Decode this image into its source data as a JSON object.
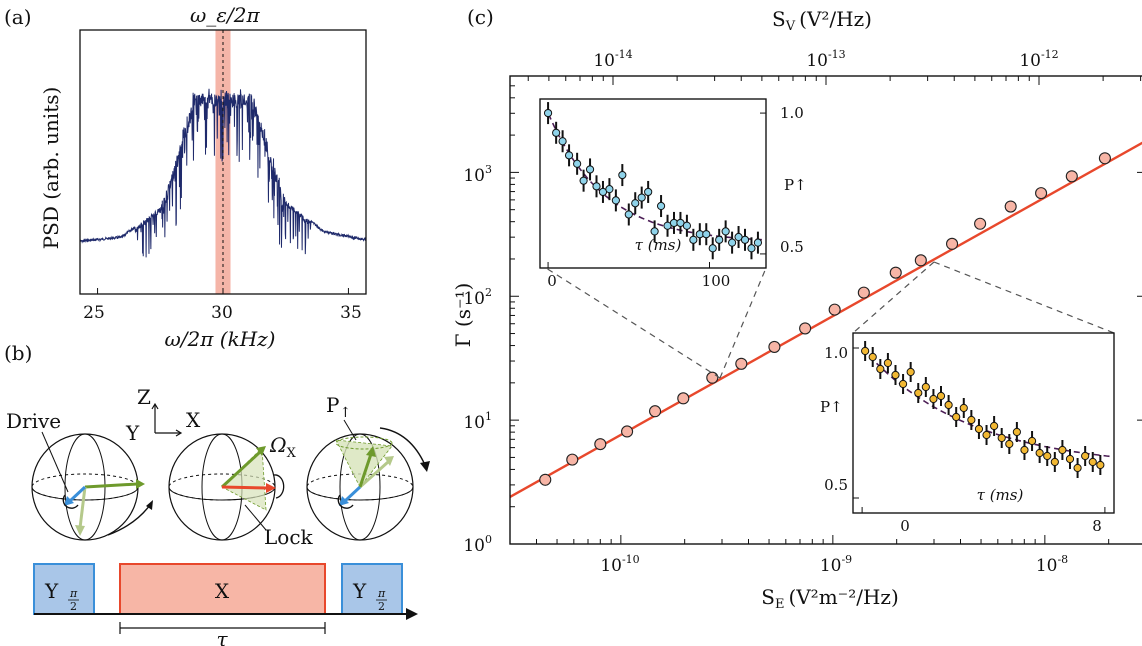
{
  "panel_a": {
    "label": "(a)",
    "top_label": "ω_ε/2π",
    "ylabel": "PSD (arb. units)",
    "xlabel": "ω/2π (kHz)",
    "xticks": [
      "25",
      "30",
      "35"
    ]
  },
  "panel_b": {
    "label": "(b)",
    "axis_z": "Z",
    "axis_y": "Y",
    "axis_x": "X",
    "drive_label": "Drive",
    "omega_label": "Ω",
    "omega_sub": "X",
    "lock_label": "Lock",
    "pup_label": "P",
    "pup_sub": "↑",
    "pulse_left": "Y",
    "pulse_mid": "X",
    "pulse_right": "Y",
    "pulse_sub_num": "π",
    "pulse_sub_den": "2",
    "tau": "τ",
    "colors": {
      "drive": "#3a8fd9",
      "green_dark": "#6e9a2c",
      "green_light": "#b5c98b",
      "red": "#e8482c",
      "pulse_blue": "#a9c6e8",
      "pulse_red": "#f7b6a6"
    }
  },
  "panel_c": {
    "label": "(c)",
    "top_axis_label": "S",
    "top_axis_sub": "V",
    "top_axis_unit": "(V²/Hz)",
    "top_ticks": [
      "10",
      "10",
      "10"
    ],
    "top_tick_exps": [
      "-14",
      "-13",
      "-12"
    ],
    "ylabel": "Γ (s⁻¹)",
    "yticks": [
      "10",
      "10",
      "10",
      "10"
    ],
    "ytick_exps": [
      "0",
      "1",
      "2",
      "3"
    ],
    "xlabel": "S",
    "xlabel_sub": "E",
    "xlabel_unit": "(V²m⁻²/Hz)",
    "xticks": [
      "10",
      "10",
      "10"
    ],
    "xtick_exps": [
      "-10",
      "-9",
      "-8"
    ]
  },
  "chart_data": [
    {
      "type": "scatter",
      "panel": "c",
      "xlabel": "S_E (V²m⁻²/Hz)",
      "ylabel": "Γ (s⁻¹)",
      "xscale": "log",
      "yscale": "log",
      "xlim": [
        3e-11,
        3e-08
      ],
      "ylim": [
        1,
        6000
      ],
      "top_axis": {
        "label": "S_V (V²/Hz)",
        "ticks": [
          1e-14,
          1e-13,
          1e-12
        ]
      },
      "series": [
        {
          "x": [
            4.4e-11,
            5.9e-11,
            8e-11,
            1.07e-10,
            1.45e-10,
            1.97e-10,
            2.7e-10,
            3.7e-10,
            5.3e-10,
            7.4e-10,
            1.02e-09,
            1.4e-09,
            1.98e-09,
            2.6e-09,
            3.65e-09,
            4.95e-09,
            6.9e-09,
            9.6e-09,
            1.34e-08,
            1.92e-08
          ],
          "y": [
            3.3,
            4.8,
            6.4,
            8.1,
            11.8,
            15.0,
            22.0,
            28.5,
            39.0,
            55.0,
            78.0,
            107.0,
            155.0,
            195.0,
            265.0,
            385.0,
            530.0,
            680.0,
            930.0,
            1300.0
          ]
        }
      ],
      "fit_line": {
        "x": [
          3e-11,
          3e-08
        ],
        "y": [
          2.4,
          1800
        ]
      },
      "colors": {
        "points": "#f7b5a6",
        "fit": "#e8482c"
      }
    },
    {
      "type": "scatter",
      "panel": "c-inset-upper",
      "xlabel": "τ (ms)",
      "ylabel": "P↑",
      "xlim": [
        -5,
        135
      ],
      "ylim": [
        0.45,
        1.05
      ],
      "xticks": [
        "0",
        "100"
      ],
      "yticks": [
        "0.5",
        "1.0"
      ],
      "x": [
        0,
        5,
        9,
        13,
        18,
        22,
        26,
        30,
        34,
        38,
        42,
        46,
        50,
        54,
        58,
        62,
        66,
        70,
        74,
        78,
        82,
        86,
        90,
        94,
        98,
        102,
        106,
        110,
        114,
        118,
        122,
        126,
        130
      ],
      "y": [
        1.0,
        0.93,
        0.9,
        0.85,
        0.82,
        0.76,
        0.8,
        0.74,
        0.72,
        0.73,
        0.69,
        0.78,
        0.64,
        0.68,
        0.7,
        0.72,
        0.58,
        0.67,
        0.6,
        0.61,
        0.61,
        0.6,
        0.55,
        0.57,
        0.57,
        0.52,
        0.55,
        0.58,
        0.54,
        0.56,
        0.55,
        0.52,
        0.54
      ],
      "colors": {
        "points": "#8fd3ea",
        "fit": "#4b1d55"
      }
    },
    {
      "type": "scatter",
      "panel": "c-inset-lower",
      "xlabel": "τ (ms)",
      "ylabel": "P↑",
      "xlim": [
        -0.3,
        8.3
      ],
      "ylim": [
        0.45,
        1.05
      ],
      "xticks": [
        "0",
        "8"
      ],
      "yticks": [
        "0.5",
        "1.0"
      ],
      "x": [
        0.1,
        0.35,
        0.6,
        0.85,
        1.1,
        1.35,
        1.6,
        1.85,
        2.1,
        2.35,
        2.6,
        2.85,
        3.1,
        3.35,
        3.6,
        3.85,
        4.1,
        4.35,
        4.6,
        4.85,
        5.1,
        5.35,
        5.6,
        5.85,
        6.1,
        6.35,
        6.6,
        6.85,
        7.1,
        7.35,
        7.6,
        7.85
      ],
      "y": [
        0.99,
        0.97,
        0.93,
        0.95,
        0.91,
        0.88,
        0.92,
        0.85,
        0.87,
        0.83,
        0.84,
        0.81,
        0.77,
        0.8,
        0.76,
        0.73,
        0.71,
        0.74,
        0.7,
        0.68,
        0.72,
        0.66,
        0.69,
        0.65,
        0.64,
        0.62,
        0.66,
        0.63,
        0.6,
        0.64,
        0.62,
        0.61
      ],
      "colors": {
        "points": "#f2b833",
        "fit": "#4b1d55"
      }
    },
    {
      "type": "line",
      "panel": "a",
      "xlabel": "ω/2π (kHz)",
      "ylabel": "PSD (arb. units)",
      "xlim": [
        24.3,
        35.7
      ],
      "highlight_band": [
        29.7,
        30.3
      ],
      "center_line": 30.0,
      "colors": {
        "trace": "#1f2a6b",
        "band": "#f5b5a8"
      }
    }
  ]
}
